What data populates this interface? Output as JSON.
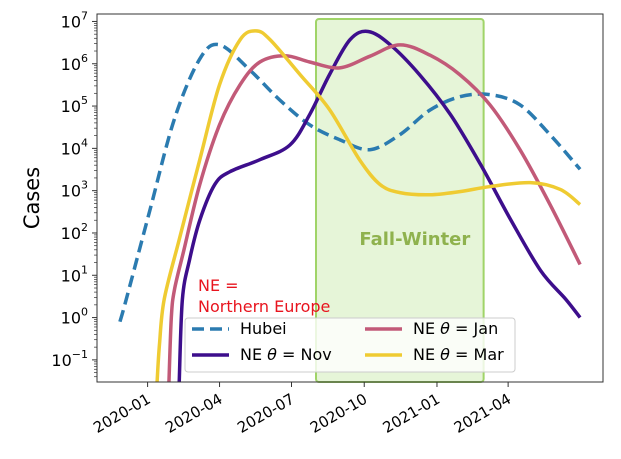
{
  "chart_data": {
    "type": "line",
    "title": "",
    "xlabel": "",
    "ylabel": "Cases",
    "yscale": "log",
    "ylim": [
      0.03,
      15000000
    ],
    "xlim": [
      "2019-10-29",
      "2021-07-30"
    ],
    "grid": false,
    "legend_placement": "lower-center",
    "x_ticks": [
      "2020-01-01",
      "2020-04-01",
      "2020-07-01",
      "2020-10-01",
      "2021-01-01",
      "2021-04-01"
    ],
    "x_tick_labels": [
      "2020-01",
      "2020-04",
      "2020-07",
      "2020-10",
      "2021-01",
      "2021-04"
    ],
    "y_ticks": [
      {
        "value": 10000000,
        "base": "10",
        "exp": "7"
      },
      {
        "value": 1000000,
        "base": "10",
        "exp": "6"
      },
      {
        "value": 100000,
        "base": "10",
        "exp": "5"
      },
      {
        "value": 10000,
        "base": "10",
        "exp": "4"
      },
      {
        "value": 1000,
        "base": "10",
        "exp": "3"
      },
      {
        "value": 100,
        "base": "10",
        "exp": "2"
      },
      {
        "value": 10,
        "base": "10",
        "exp": "1"
      },
      {
        "value": 1,
        "base": "10",
        "exp": "0"
      },
      {
        "value": 0.1,
        "base": "10",
        "exp": "−1"
      }
    ],
    "shaded_region": {
      "label": "Fall-Winter",
      "start": "2020-08-01",
      "end": "2021-03-01",
      "fill": "#e6f5d8",
      "stroke": "#a0d468",
      "label_color": "#8fb24e"
    },
    "annotation": {
      "lines": [
        "NE =",
        "Northern Europe"
      ],
      "color": "#e8141e"
    },
    "series": [
      {
        "name": "Hubei",
        "color": "#2b7bb0",
        "dash": true,
        "points": [
          [
            "2019-11-27",
            0.8
          ],
          [
            "2019-12-05",
            2.7
          ],
          [
            "2020-01-04",
            350
          ],
          [
            "2020-02-04",
            50000
          ],
          [
            "2020-03-07",
            1300000
          ],
          [
            "2020-04-01",
            2800000
          ],
          [
            "2020-05-09",
            720000
          ],
          [
            "2020-06-16",
            140000
          ],
          [
            "2020-07-24",
            36000
          ],
          [
            "2020-08-31",
            16000
          ],
          [
            "2020-10-08",
            9300
          ],
          [
            "2020-11-15",
            21000
          ],
          [
            "2020-12-23",
            80000
          ],
          [
            "2021-01-30",
            166000
          ],
          [
            "2021-03-09",
            186000
          ],
          [
            "2021-04-16",
            107000
          ],
          [
            "2021-05-24",
            21000
          ],
          [
            "2021-07-01",
            3200
          ]
        ]
      },
      {
        "name": "NE θ = Nov",
        "legend_prefix": "NE ",
        "legend_theta": "θ",
        "legend_suffix": " = Nov",
        "color": "#3d0e8c",
        "dash": false,
        "points": [
          [
            "2020-02-10",
            0.03
          ],
          [
            "2020-02-14",
            2.7
          ],
          [
            "2020-02-23",
            23
          ],
          [
            "2020-03-07",
            200
          ],
          [
            "2020-03-26",
            1400
          ],
          [
            "2020-04-14",
            2800
          ],
          [
            "2020-05-22",
            5400
          ],
          [
            "2020-06-29",
            12000
          ],
          [
            "2020-07-24",
            63000
          ],
          [
            "2020-08-18",
            550000
          ],
          [
            "2020-09-13",
            3700000
          ],
          [
            "2020-10-06",
            5800000
          ],
          [
            "2020-11-03",
            2800000
          ],
          [
            "2020-12-10",
            550000
          ],
          [
            "2021-01-18",
            63000
          ],
          [
            "2021-02-25",
            4200
          ],
          [
            "2021-04-04",
            210
          ],
          [
            "2021-05-12",
            13
          ],
          [
            "2021-06-13",
            2.7
          ],
          [
            "2021-07-01",
            1.0
          ]
        ]
      },
      {
        "name": "NE θ = Jan",
        "legend_prefix": "NE ",
        "legend_theta": "θ",
        "legend_suffix": " = Jan",
        "color": "#c25a78",
        "dash": false,
        "points": [
          [
            "2020-01-28",
            0.03
          ],
          [
            "2020-01-31",
            1.0
          ],
          [
            "2020-02-04",
            4.6
          ],
          [
            "2020-02-16",
            40
          ],
          [
            "2020-03-07",
            1400
          ],
          [
            "2020-04-01",
            36000
          ],
          [
            "2020-04-27",
            320000
          ],
          [
            "2020-05-22",
            1100000
          ],
          [
            "2020-06-23",
            1550000
          ],
          [
            "2020-07-24",
            1100000
          ],
          [
            "2020-08-31",
            800000
          ],
          [
            "2020-10-08",
            1500000
          ],
          [
            "2020-11-15",
            2800000
          ],
          [
            "2020-12-23",
            1600000
          ],
          [
            "2021-01-30",
            550000
          ],
          [
            "2021-03-09",
            107000
          ],
          [
            "2021-04-16",
            9300
          ],
          [
            "2021-05-24",
            470
          ],
          [
            "2021-07-01",
            18
          ]
        ]
      },
      {
        "name": "NE θ = Mar",
        "legend_prefix": "NE ",
        "legend_theta": "θ",
        "legend_suffix": " = Mar",
        "color": "#efcb32",
        "dash": false,
        "points": [
          [
            "2020-01-13",
            0.03
          ],
          [
            "2020-01-16",
            0.23
          ],
          [
            "2020-01-22",
            2.7
          ],
          [
            "2020-02-10",
            70
          ],
          [
            "2020-03-07",
            5400
          ],
          [
            "2020-04-01",
            320000
          ],
          [
            "2020-04-27",
            3700000
          ],
          [
            "2020-05-17",
            6000000
          ],
          [
            "2020-06-04",
            3700000
          ],
          [
            "2020-07-12",
            550000
          ],
          [
            "2020-08-18",
            83000
          ],
          [
            "2020-09-25",
            5400
          ],
          [
            "2020-10-21",
            1400
          ],
          [
            "2020-11-15",
            900
          ],
          [
            "2020-12-23",
            800
          ],
          [
            "2021-01-30",
            950
          ],
          [
            "2021-03-09",
            1250
          ],
          [
            "2021-04-29",
            1550
          ],
          [
            "2021-06-06",
            1070
          ],
          [
            "2021-07-01",
            470
          ]
        ]
      }
    ]
  }
}
